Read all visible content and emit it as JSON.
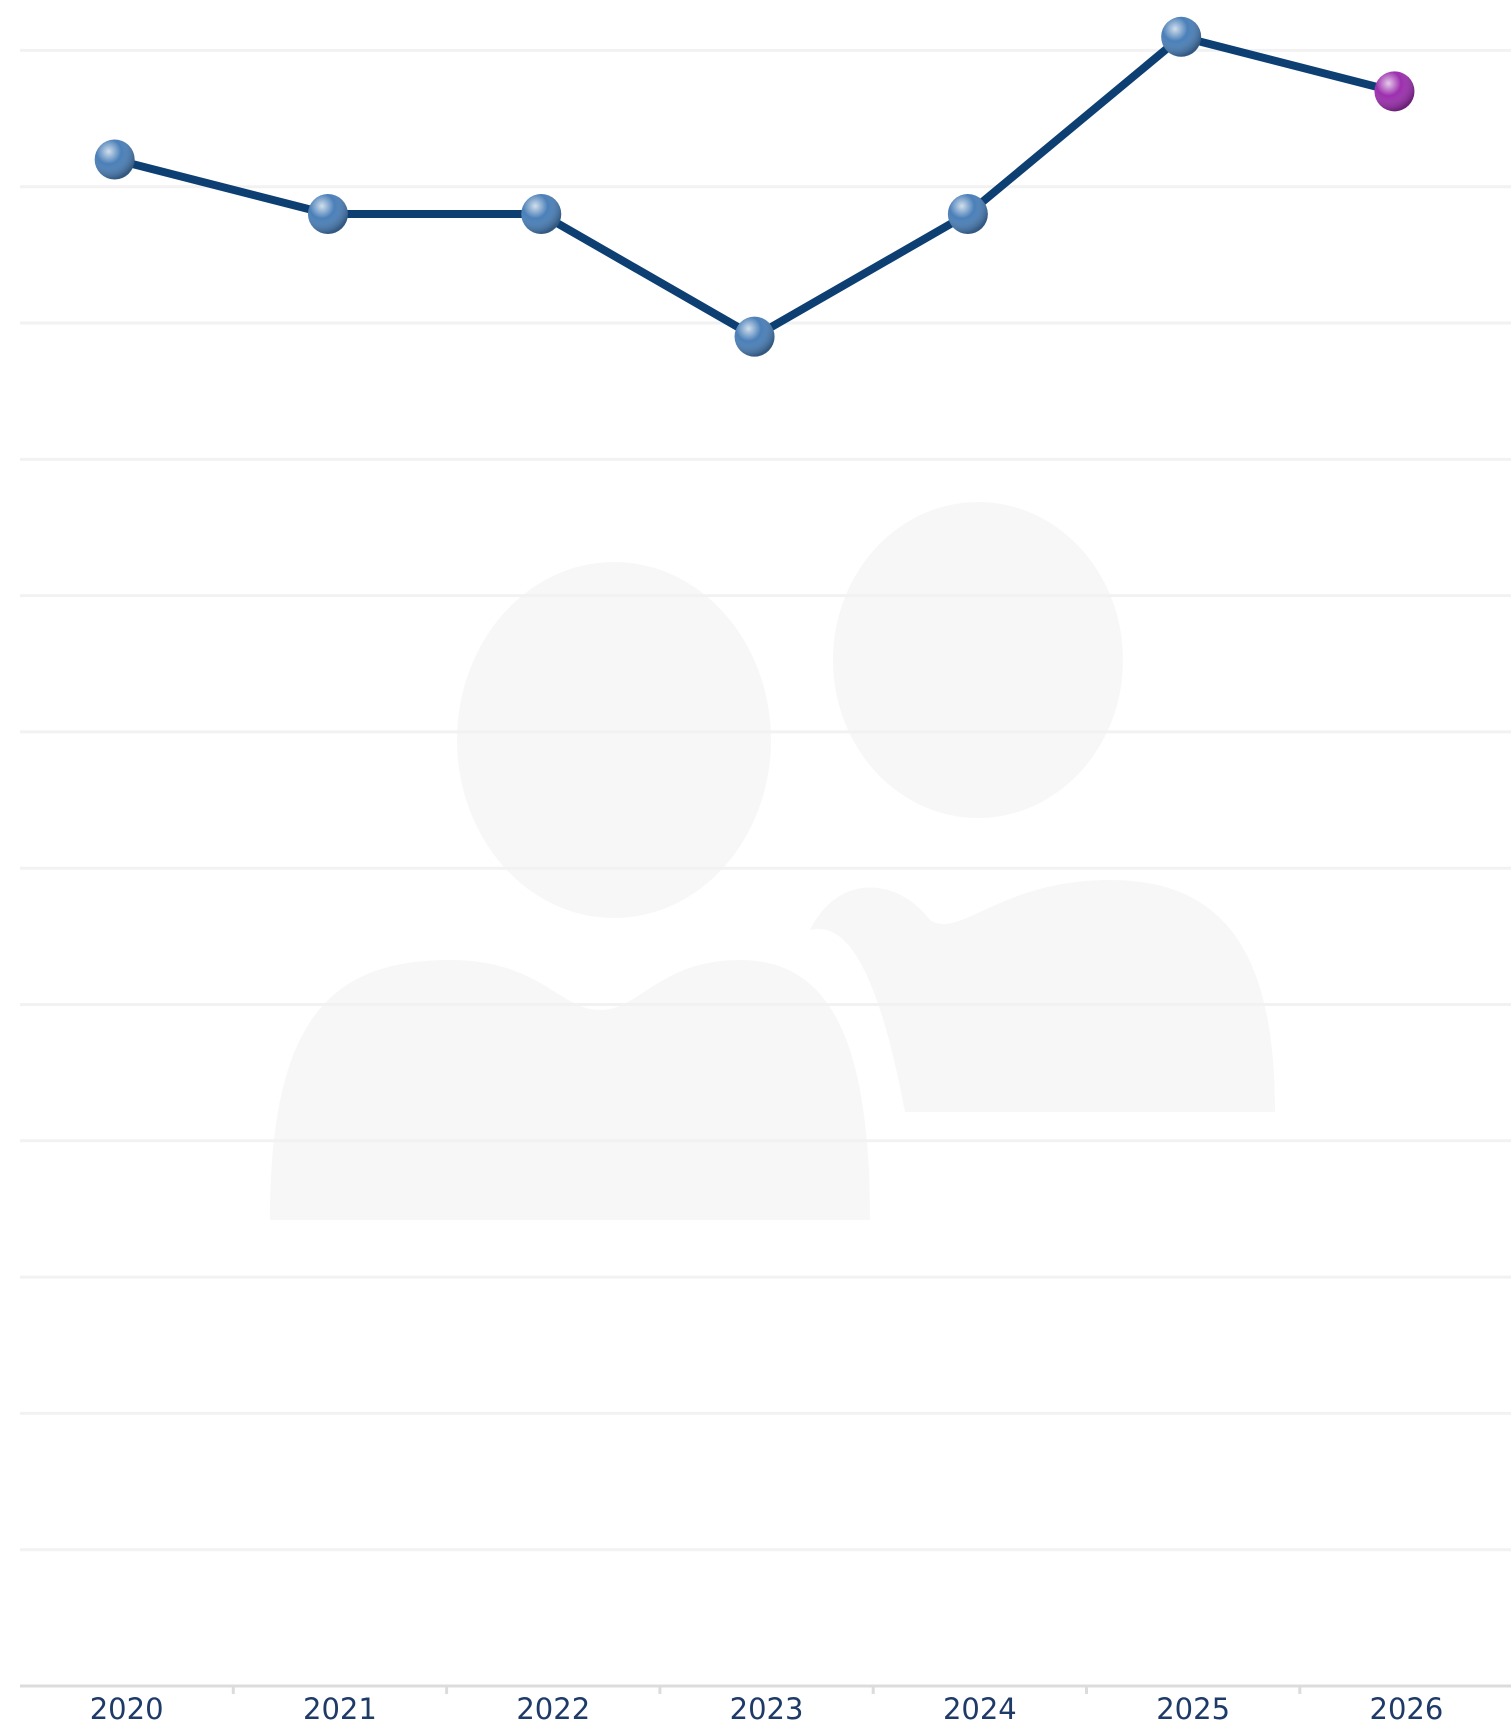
{
  "chart_data": {
    "type": "line",
    "categories": [
      "2020",
      "2021",
      "2022",
      "2023",
      "2024",
      "2025",
      "2026"
    ],
    "series": [
      {
        "color": "#0d3f73",
        "values": [
          11.2,
          10.8,
          10.8,
          9.9,
          10.8,
          12.1,
          11.7
        ],
        "marker_colors": [
          "#4a7fb8",
          "#4a7fb8",
          "#4a7fb8",
          "#4a7fb8",
          "#4a7fb8",
          "#4a7fb8",
          "#9c2fae"
        ]
      }
    ],
    "ylim": [
      0,
      12.37
    ],
    "yticks": [
      0,
      1,
      2,
      3,
      4,
      5,
      6,
      7,
      8,
      9,
      10,
      11,
      12
    ],
    "grid": true
  }
}
